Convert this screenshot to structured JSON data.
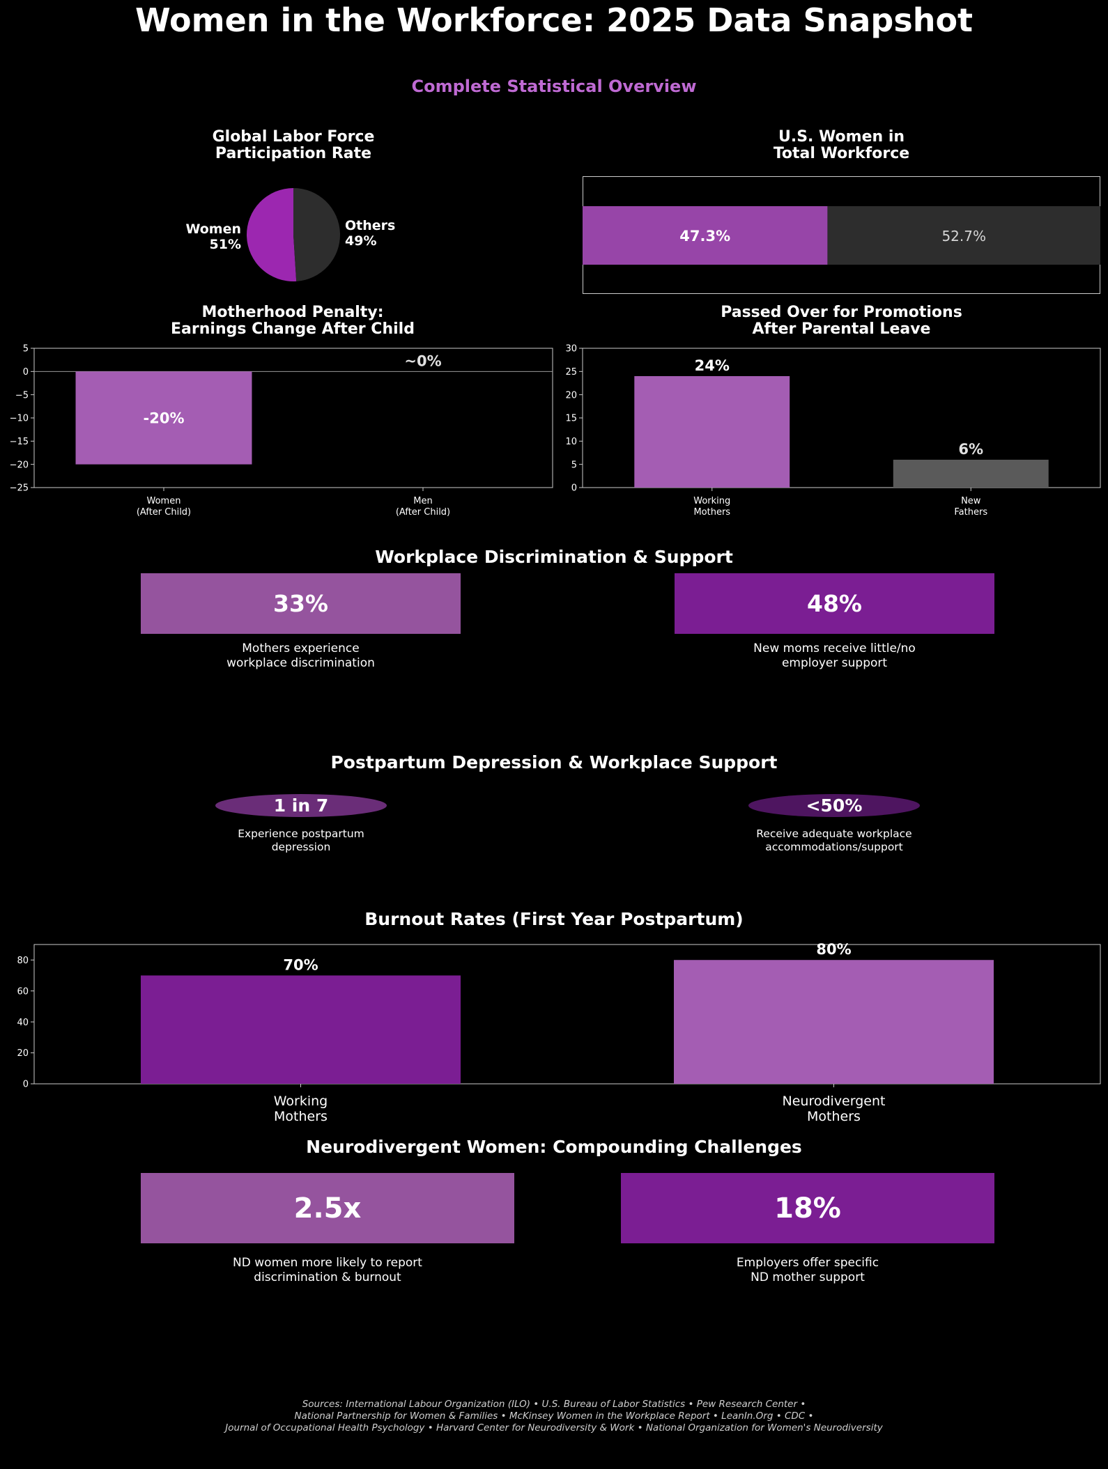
{
  "title": "Women in the Workforce: 2025 Data Snapshot",
  "subtitle": "Complete Statistical Overview",
  "colors": {
    "purple_bright": "#9c27b0",
    "purple_light": "#a45db3",
    "purple_bar": "#9745a8",
    "purple_dark": "#7b1e93",
    "purple_box_light": "#95549e",
    "gray_dark": "#2d2d2d",
    "gray_mid": "#5a5a5a",
    "ellipse_1": "#6a2d78",
    "ellipse_2": "#4e1560"
  },
  "chart_data": [
    {
      "type": "pie",
      "title_lines": [
        "Global Labor Force",
        "Participation Rate"
      ],
      "labels": [
        "Women",
        "Others"
      ],
      "values": [
        51,
        49
      ],
      "value_labels": [
        "51%",
        "49%"
      ]
    },
    {
      "type": "bar",
      "orientation": "horizontal-stacked",
      "title_lines": [
        "U.S. Women in",
        "Total Workforce"
      ],
      "values": [
        47.3,
        52.7
      ],
      "value_labels": [
        "47.3%",
        "52.7%"
      ]
    },
    {
      "type": "bar",
      "title_lines": [
        "Motherhood Penalty:",
        "Earnings Change After Child"
      ],
      "categories": [
        [
          "Women",
          "(After Child)"
        ],
        [
          "Men",
          "(After Child)"
        ]
      ],
      "values": [
        -20,
        0
      ],
      "value_labels": [
        "-20%",
        "~0%"
      ],
      "ylim": [
        -25,
        5
      ],
      "yticks": [
        "5",
        "0",
        "−5",
        "−10",
        "−15",
        "−20",
        "−25"
      ]
    },
    {
      "type": "bar",
      "title_lines": [
        "Passed Over for Promotions",
        "After Parental Leave"
      ],
      "categories": [
        [
          "Working",
          "Mothers"
        ],
        [
          "New",
          "Fathers"
        ]
      ],
      "values": [
        24,
        6
      ],
      "value_labels": [
        "24%",
        "6%"
      ],
      "ylim": [
        0,
        30
      ],
      "yticks": [
        "30",
        "25",
        "20",
        "15",
        "10",
        "5",
        "0"
      ]
    },
    {
      "type": "bar",
      "title": "Burnout Rates (First Year Postpartum)",
      "categories": [
        [
          "Working",
          "Mothers"
        ],
        [
          "Neurodivergent",
          "Mothers"
        ]
      ],
      "values": [
        70,
        80
      ],
      "value_labels": [
        "70%",
        "80%"
      ],
      "ylim": [
        0,
        90
      ],
      "yticks": [
        "80",
        "60",
        "40",
        "20",
        "0"
      ]
    }
  ],
  "discrimination": {
    "title": "Workplace Discrimination & Support",
    "stats": [
      {
        "value": "33%",
        "caption": [
          "Mothers experience",
          "workplace discrimination"
        ]
      },
      {
        "value": "48%",
        "caption": [
          "New moms receive little/no",
          "employer support"
        ]
      }
    ]
  },
  "postpartum": {
    "title": "Postpartum Depression & Workplace Support",
    "stats": [
      {
        "value": "1 in 7",
        "caption": [
          "Experience postpartum",
          "depression"
        ]
      },
      {
        "value": "<50%",
        "caption": [
          "Receive adequate workplace",
          "accommodations/support"
        ]
      }
    ]
  },
  "neurodivergent": {
    "title": "Neurodivergent Women: Compounding Challenges",
    "stats": [
      {
        "value": "2.5x",
        "caption": [
          "ND women more likely to report",
          "discrimination & burnout"
        ]
      },
      {
        "value": "18%",
        "caption": [
          "Employers offer specific",
          "ND mother support"
        ]
      }
    ]
  },
  "sources": [
    "Sources: International Labour Organization (ILO) • U.S. Bureau of Labor Statistics • Pew Research Center •",
    "National Partnership for Women & Families • McKinsey Women in the Workplace Report • LeanIn.Org • CDC •",
    "Journal of Occupational Health Psychology • Harvard Center for Neurodiversity & Work • National Organization for Women's Neurodiversity"
  ]
}
